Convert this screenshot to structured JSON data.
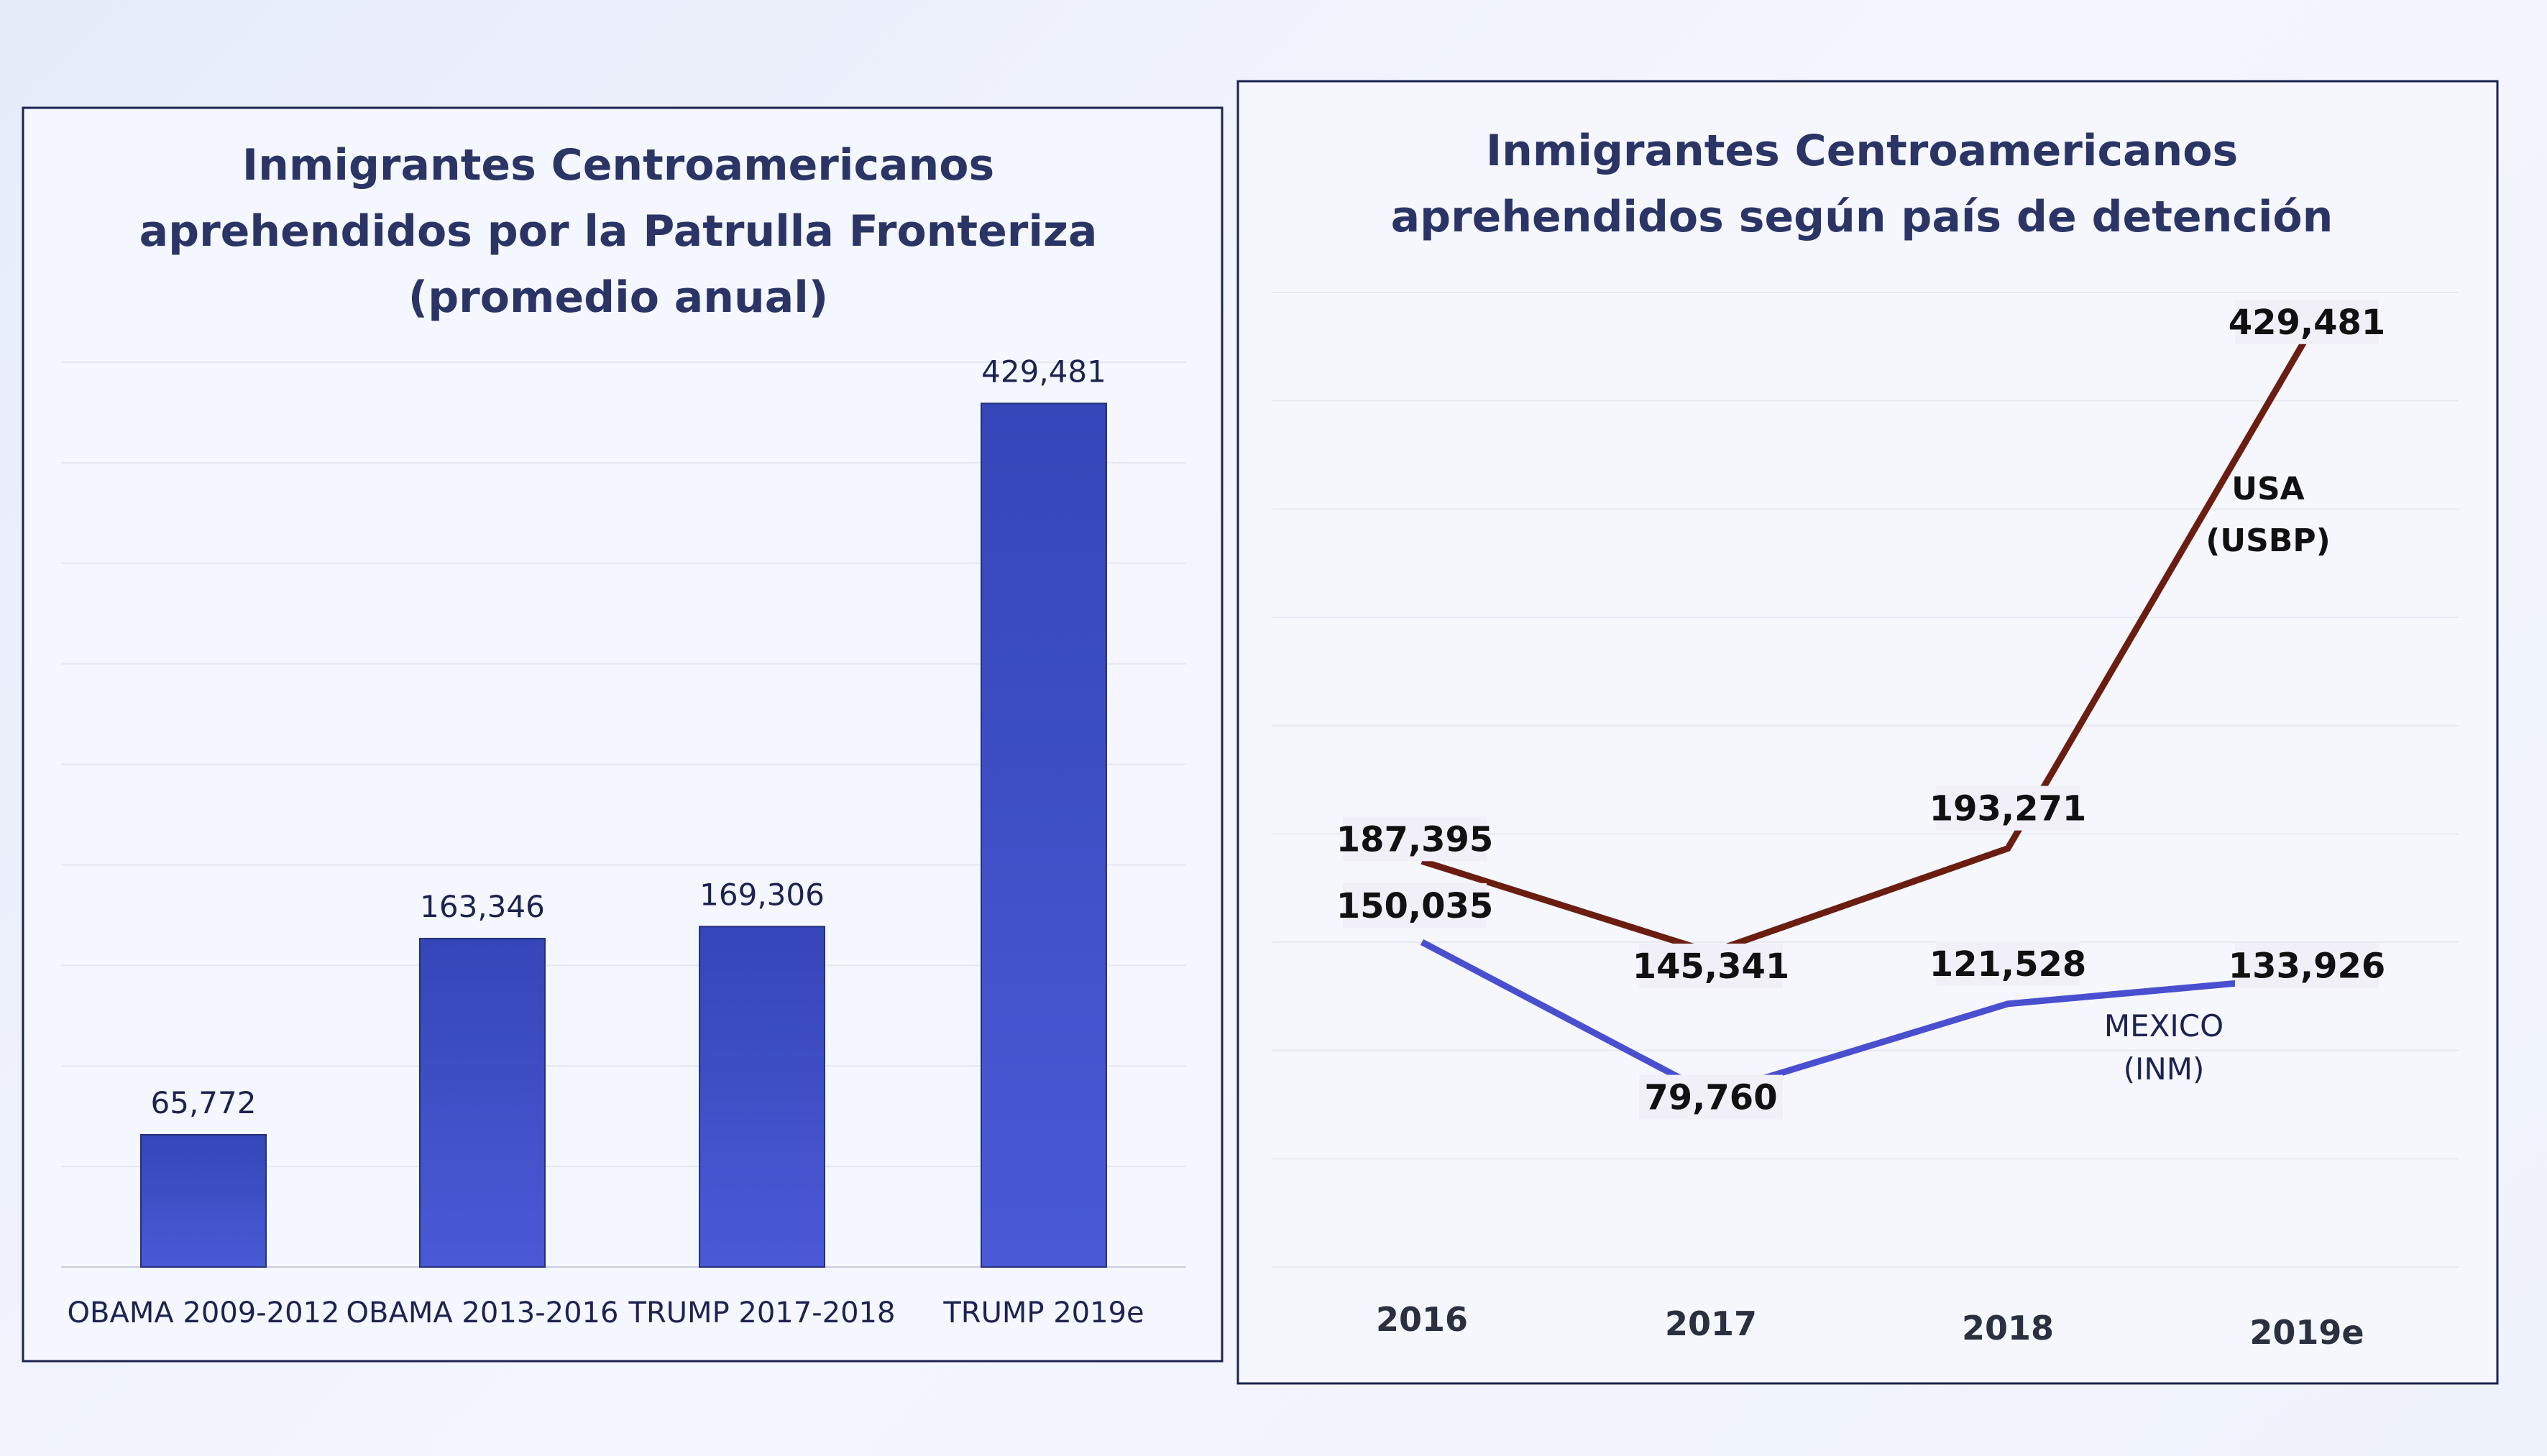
{
  "chart_data": [
    {
      "type": "bar",
      "title": [
        "Inmigrantes Centroamericanos",
        "aprehendidos por la Patrulla Fronteriza",
        "(promedio anual)"
      ],
      "categories": [
        "OBAMA 2009-2012",
        "OBAMA 2013-2016",
        "TRUMP 2017-2018",
        "TRUMP 2019e"
      ],
      "values": [
        65772,
        163346,
        169306,
        429481
      ],
      "labels": [
        "65,772",
        "163,346",
        "169,306",
        "429,481"
      ],
      "ylim": [
        0,
        450000
      ],
      "grid": true,
      "colors": {
        "bar": "#3d4fc2"
      }
    },
    {
      "type": "line",
      "title": [
        "Inmigrantes Centroamericanos",
        "aprehendidos según país de detención"
      ],
      "categories": [
        "2016",
        "2017",
        "2018",
        "2019e"
      ],
      "ylim": [
        0,
        450000
      ],
      "grid": true,
      "series": [
        {
          "name": "USA (USBP)",
          "name_lines": [
            "USA",
            "(USBP)"
          ],
          "values": [
            187395,
            145341,
            193271,
            429481
          ],
          "labels": [
            "187,395",
            "145,341",
            "193,271",
            "429,481"
          ],
          "color": "#6b1d12"
        },
        {
          "name": "MEXICO (INM)",
          "name_lines": [
            "MEXICO",
            "(INM)"
          ],
          "values": [
            150035,
            79760,
            121528,
            133926
          ],
          "labels": [
            "150,035",
            "79,760",
            "121,528",
            "133,926"
          ],
          "color": "#4a4fd0"
        }
      ]
    }
  ]
}
